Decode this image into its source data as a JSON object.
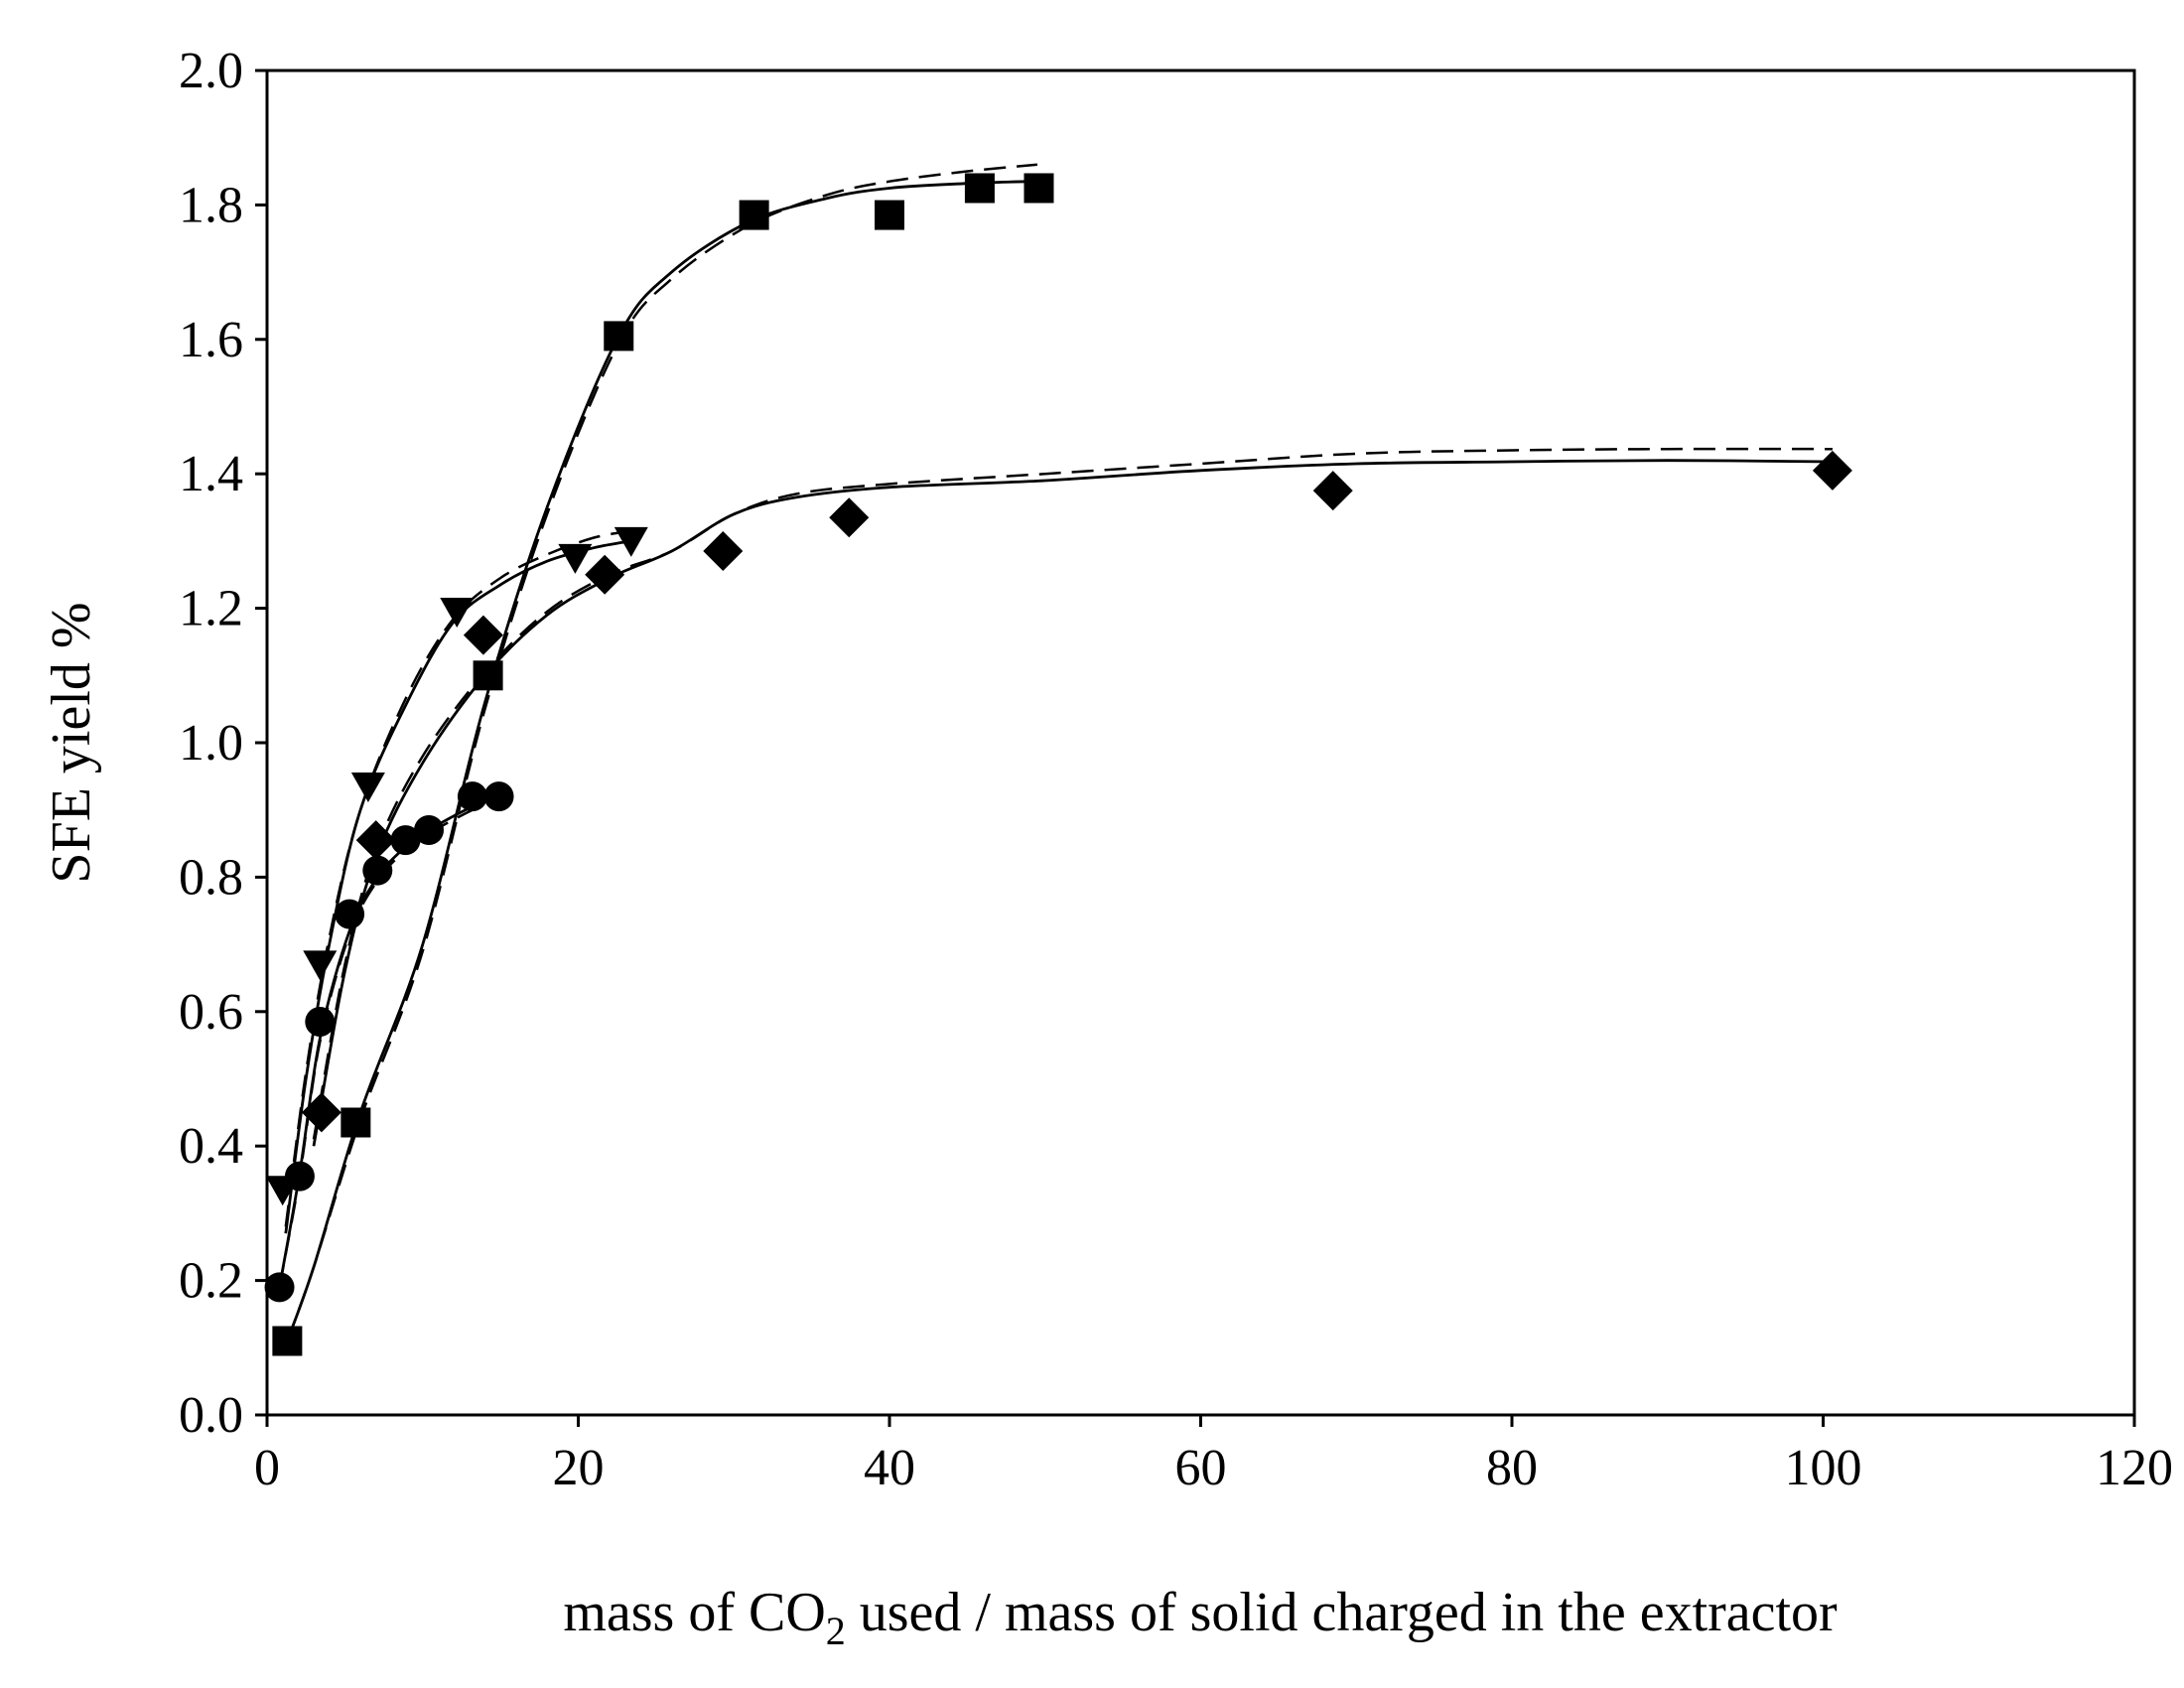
{
  "chart_data": {
    "type": "scatter",
    "title": "",
    "xlabel": "mass of CO2 used / mass of solid charged in the extractor",
    "xlabel_parts": {
      "before": "mass of CO",
      "subscript": "2",
      "after": " used / mass of solid charged in the extractor"
    },
    "ylabel": "SFE yield  %",
    "xlim": [
      0,
      120
    ],
    "ylim": [
      0.0,
      2.0
    ],
    "x_ticks": [
      "0",
      "20",
      "40",
      "60",
      "80",
      "100",
      "120"
    ],
    "y_ticks": [
      "0.0",
      "0.2",
      "0.4",
      "0.6",
      "0.8",
      "1.0",
      "1.2",
      "1.4",
      "1.6",
      "1.8",
      "2.0"
    ],
    "grid": false,
    "legend": "none",
    "series": [
      {
        "name": "squares",
        "marker": "square",
        "points": [
          [
            1.3,
            0.11
          ],
          [
            5.7,
            0.435
          ],
          [
            14.2,
            1.1
          ],
          [
            22.6,
            1.605
          ],
          [
            31.3,
            1.785
          ],
          [
            40.0,
            1.785
          ],
          [
            45.8,
            1.825
          ],
          [
            49.6,
            1.825
          ]
        ],
        "model_solid": [
          [
            1.3,
            0.11
          ],
          [
            3,
            0.22
          ],
          [
            6,
            0.45
          ],
          [
            10,
            0.7
          ],
          [
            14,
            1.06
          ],
          [
            18,
            1.35
          ],
          [
            22.6,
            1.605
          ],
          [
            26,
            1.7
          ],
          [
            31,
            1.775
          ],
          [
            36,
            1.81
          ],
          [
            40,
            1.825
          ],
          [
            45,
            1.832
          ],
          [
            49,
            1.835
          ]
        ],
        "model_dashed": [
          [
            1.3,
            0.11
          ],
          [
            3,
            0.22
          ],
          [
            6,
            0.44
          ],
          [
            10,
            0.69
          ],
          [
            14,
            1.05
          ],
          [
            18,
            1.34
          ],
          [
            22.6,
            1.595
          ],
          [
            26,
            1.69
          ],
          [
            31,
            1.77
          ],
          [
            36,
            1.815
          ],
          [
            40,
            1.835
          ],
          [
            45,
            1.85
          ],
          [
            49.5,
            1.86
          ]
        ]
      },
      {
        "name": "diamonds",
        "marker": "diamond",
        "points": [
          [
            3.5,
            0.45
          ],
          [
            7.0,
            0.855
          ],
          [
            13.9,
            1.16
          ],
          [
            21.7,
            1.25
          ],
          [
            29.3,
            1.285
          ],
          [
            37.4,
            1.335
          ],
          [
            68.5,
            1.375
          ],
          [
            100.6,
            1.405
          ]
        ],
        "model_solid": [
          [
            3.0,
            0.4
          ],
          [
            5,
            0.66
          ],
          [
            7,
            0.83
          ],
          [
            10,
            0.97
          ],
          [
            14,
            1.1
          ],
          [
            18,
            1.19
          ],
          [
            22,
            1.245
          ],
          [
            26,
            1.285
          ],
          [
            30,
            1.34
          ],
          [
            34,
            1.365
          ],
          [
            40,
            1.38
          ],
          [
            50,
            1.39
          ],
          [
            60,
            1.405
          ],
          [
            70,
            1.415
          ],
          [
            80,
            1.418
          ],
          [
            90,
            1.42
          ],
          [
            100.6,
            1.418
          ]
        ],
        "model_dashed": [
          [
            3.0,
            0.41
          ],
          [
            5,
            0.67
          ],
          [
            7,
            0.84
          ],
          [
            10,
            0.98
          ],
          [
            14,
            1.105
          ],
          [
            18,
            1.195
          ],
          [
            22,
            1.25
          ],
          [
            26,
            1.285
          ],
          [
            30,
            1.34
          ],
          [
            34,
            1.37
          ],
          [
            40,
            1.385
          ],
          [
            50,
            1.4
          ],
          [
            60,
            1.415
          ],
          [
            70,
            1.43
          ],
          [
            80,
            1.435
          ],
          [
            90,
            1.437
          ],
          [
            100.6,
            1.437
          ]
        ]
      },
      {
        "name": "down-triangles",
        "marker": "triangle-down",
        "points": [
          [
            1.0,
            0.335
          ],
          [
            3.4,
            0.67
          ],
          [
            6.5,
            0.935
          ],
          [
            12.2,
            1.195
          ],
          [
            19.8,
            1.275
          ],
          [
            23.4,
            1.3
          ]
        ],
        "model_solid": [
          [
            1.2,
            0.27
          ],
          [
            2.5,
            0.5
          ],
          [
            4,
            0.7
          ],
          [
            6,
            0.9
          ],
          [
            9,
            1.06
          ],
          [
            12,
            1.18
          ],
          [
            15,
            1.235
          ],
          [
            18,
            1.27
          ],
          [
            21,
            1.29
          ],
          [
            23.4,
            1.3
          ]
        ],
        "model_dashed": [
          [
            1.2,
            0.28
          ],
          [
            2.5,
            0.51
          ],
          [
            4,
            0.71
          ],
          [
            6,
            0.9
          ],
          [
            9,
            1.07
          ],
          [
            12,
            1.185
          ],
          [
            15,
            1.245
          ],
          [
            18,
            1.28
          ],
          [
            21,
            1.305
          ],
          [
            23.4,
            1.315
          ]
        ]
      },
      {
        "name": "circles",
        "marker": "circle",
        "points": [
          [
            0.8,
            0.19
          ],
          [
            2.1,
            0.355
          ],
          [
            3.4,
            0.585
          ],
          [
            5.3,
            0.745
          ],
          [
            7.1,
            0.81
          ],
          [
            8.9,
            0.855
          ],
          [
            10.4,
            0.87
          ],
          [
            13.2,
            0.92
          ],
          [
            14.9,
            0.92
          ]
        ],
        "model_solid": [
          [
            0.8,
            0.19
          ],
          [
            2.1,
            0.36
          ],
          [
            3.4,
            0.56
          ],
          [
            5.3,
            0.72
          ],
          [
            7.1,
            0.8
          ],
          [
            8.9,
            0.845
          ],
          [
            10.4,
            0.87
          ],
          [
            13.2,
            0.905
          ],
          [
            14.9,
            0.92
          ]
        ],
        "model_dashed": [
          [
            0.8,
            0.19
          ],
          [
            2.1,
            0.355
          ],
          [
            3.4,
            0.555
          ],
          [
            5.3,
            0.715
          ],
          [
            7.1,
            0.795
          ],
          [
            8.9,
            0.84
          ],
          [
            10.4,
            0.865
          ],
          [
            13.2,
            0.9
          ],
          [
            14.9,
            0.915
          ]
        ]
      }
    ]
  }
}
